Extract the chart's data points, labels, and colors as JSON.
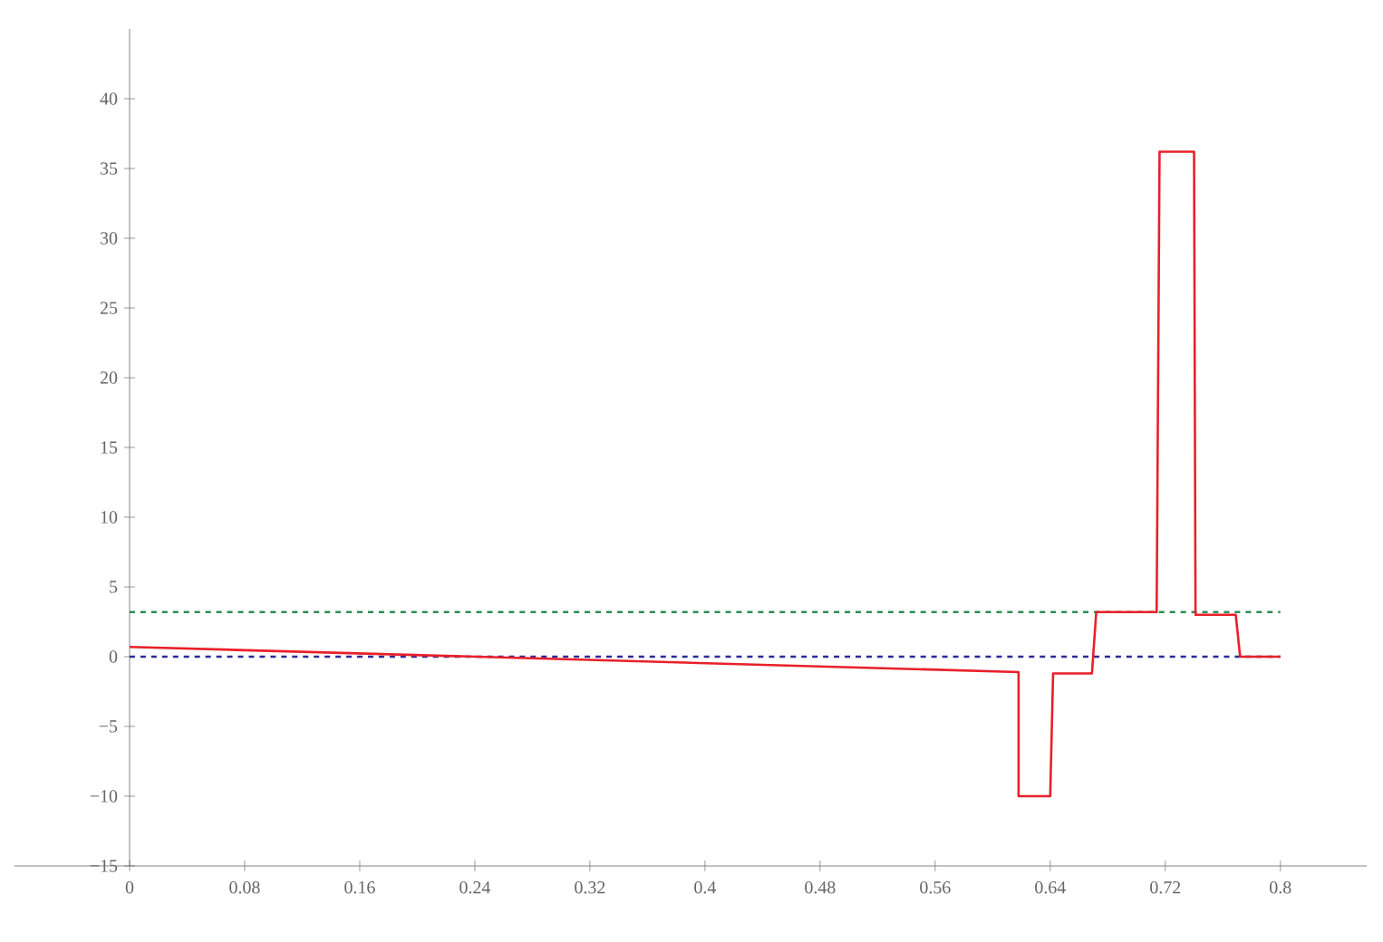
{
  "chart_data": {
    "type": "line",
    "marker": "none",
    "line_style": "solid",
    "grid": false,
    "xlim": [
      -0.08,
      0.86
    ],
    "ylim": [
      -15,
      45
    ],
    "xticks": [
      0,
      0.08,
      0.16,
      0.24,
      0.32,
      0.4,
      0.48,
      0.56,
      0.64,
      0.72,
      0.8
    ],
    "yticks": [
      {
        "value": -15,
        "label": "−15"
      },
      {
        "value": -10,
        "label": "−10"
      },
      {
        "value": -5,
        "label": "−5"
      },
      0,
      5,
      10,
      15,
      20,
      25,
      30,
      35,
      40
    ],
    "series": [
      {
        "color": "#e8202a",
        "x": [
          0,
          0.618,
          0.618,
          0.64,
          0.642,
          0.669,
          0.672,
          0.714,
          0.716,
          0.74,
          0.741,
          0.769,
          0.772,
          0.8
        ],
        "values": [
          0.7,
          -1.1,
          -10,
          -10,
          -1.2,
          -1.2,
          3.2,
          3.2,
          36.2,
          36.2,
          3.0,
          3.0,
          0,
          0
        ]
      }
    ],
    "ref_lines": [
      {
        "axis": "y",
        "value": 3.2,
        "color": "#2e8b57",
        "line_style": "dashed"
      },
      {
        "axis": "y",
        "value": 0,
        "color": "#2b2b9b",
        "line_style": "dashed"
      }
    ]
  }
}
